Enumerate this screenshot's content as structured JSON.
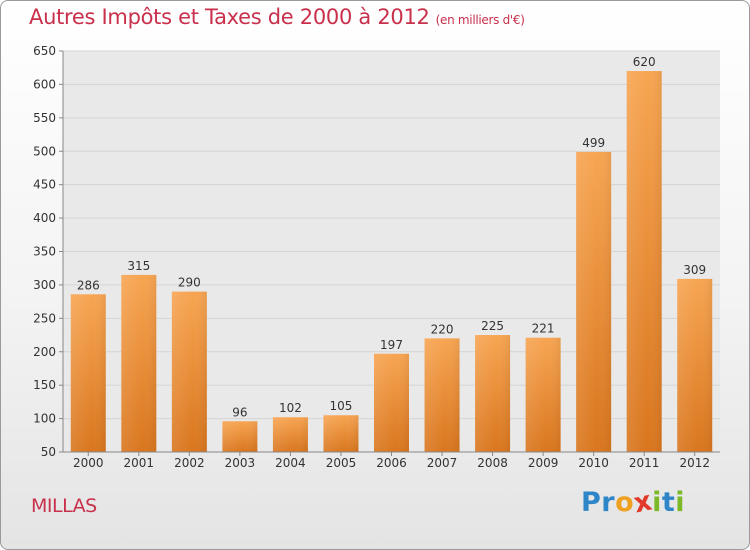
{
  "chart_data": {
    "type": "bar",
    "title": "Autres Impôts et Taxes de 2000 à 2012",
    "subtitle": "(en milliers d'€)",
    "xlabel": "",
    "ylabel": "",
    "categories": [
      "2000",
      "2001",
      "2002",
      "2003",
      "2004",
      "2005",
      "2006",
      "2007",
      "2008",
      "2009",
      "2010",
      "2011",
      "2012"
    ],
    "values": [
      286,
      315,
      290,
      96,
      102,
      105,
      197,
      220,
      225,
      221,
      499,
      620,
      309
    ],
    "ylim": [
      50,
      650
    ],
    "yticks": [
      50,
      100,
      150,
      200,
      250,
      300,
      350,
      400,
      450,
      500,
      550,
      600,
      650
    ],
    "grid": true,
    "legend": "none",
    "colors": {
      "bar_top": "#f7a552",
      "bar_bottom": "#d9761e",
      "title": "#c8304c",
      "grid": "#d4d4d4",
      "plot_bg": "#e9e9e9"
    }
  },
  "footer": {
    "commune": "MILLAS",
    "logo_letters": [
      {
        "char": "P",
        "color": "#2e86c8"
      },
      {
        "char": "r",
        "color": "#2e86c8"
      },
      {
        "char": "o",
        "color": "#f0a020"
      },
      {
        "char": "x",
        "color": "#e23a2a"
      },
      {
        "char": "i",
        "color": "#7cb927"
      },
      {
        "char": "t",
        "color": "#2e86c8"
      },
      {
        "char": "i",
        "color": "#7cb927"
      }
    ]
  }
}
